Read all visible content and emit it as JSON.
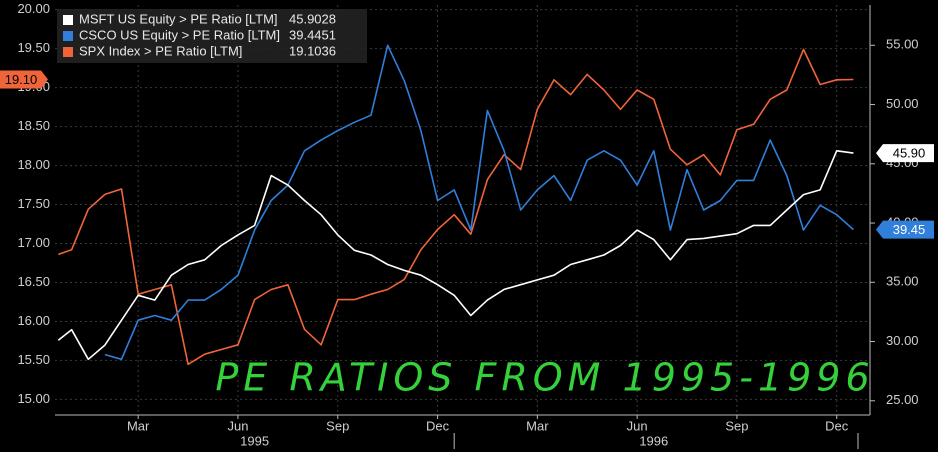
{
  "chart_data": {
    "type": "line",
    "annotation": "PE RATIOS FROM 1995-1996",
    "x": [
      -0.4,
      0,
      0.5,
      1,
      1.5,
      2,
      2.5,
      3,
      3.5,
      4,
      4.5,
      5,
      5.5,
      6,
      6.5,
      7,
      7.5,
      8,
      8.5,
      9,
      9.5,
      10,
      10.5,
      11,
      11.5,
      12,
      12.5,
      13,
      13.5,
      14,
      14.5,
      15,
      15.5,
      16,
      16.5,
      17,
      17.5,
      18,
      18.5,
      19,
      19.5,
      20,
      20.5,
      21,
      21.5,
      22,
      22.5,
      23,
      23.5
    ],
    "xlim": [
      -0.5,
      24
    ],
    "xticks": [
      {
        "value": 2,
        "label": "Mar"
      },
      {
        "value": 5,
        "label": "Jun"
      },
      {
        "value": 8,
        "label": "Sep"
      },
      {
        "value": 11,
        "label": "Dec"
      },
      {
        "value": 14,
        "label": "Mar"
      },
      {
        "value": 17,
        "label": "Jun"
      },
      {
        "value": 20,
        "label": "Sep"
      },
      {
        "value": 23,
        "label": "Dec"
      }
    ],
    "xgroups": [
      "1995",
      "1996"
    ],
    "ylim": [
      14.8,
      20.06
    ],
    "yticks": [
      {
        "value": 15,
        "label": "15.00"
      },
      {
        "value": 15.5,
        "label": "15.50"
      },
      {
        "value": 16,
        "label": "16.00"
      },
      {
        "value": 16.5,
        "label": "16.50"
      },
      {
        "value": 17,
        "label": "17.00"
      },
      {
        "value": 17.5,
        "label": "17.50"
      },
      {
        "value": 18,
        "label": "18.00"
      },
      {
        "value": 18.5,
        "label": "18.50"
      },
      {
        "value": 19,
        "label": "19.00"
      },
      {
        "value": 19.5,
        "label": "19.50"
      },
      {
        "value": 20,
        "label": "20.00"
      }
    ],
    "y2lim": [
      23.8,
      58.4
    ],
    "y2ticks": [
      {
        "value": 25,
        "label": "25.00"
      },
      {
        "value": 30,
        "label": "30.00"
      },
      {
        "value": 35,
        "label": "35.00"
      },
      {
        "value": 40,
        "label": "40.00"
      },
      {
        "value": 45,
        "label": "45.00"
      },
      {
        "value": 50,
        "label": "50.00"
      },
      {
        "value": 55,
        "label": "55.00"
      }
    ],
    "grid": true,
    "legend": "top-left",
    "series": [
      {
        "name": "MSFT US Equity > PE Ratio [LTM]",
        "color": "#ffffff",
        "axis": "y2",
        "last_label": "45.90",
        "values": [
          30.1,
          31.0,
          28.5,
          29.7,
          31.8,
          33.9,
          33.5,
          35.6,
          36.5,
          36.9,
          38.1,
          39.0,
          39.8,
          44.0,
          43.2,
          41.9,
          40.7,
          39.0,
          37.7,
          37.3,
          36.5,
          36.0,
          35.6,
          34.8,
          33.9,
          32.2,
          33.5,
          34.4,
          34.8,
          35.2,
          35.6,
          36.5,
          36.9,
          37.3,
          38.1,
          39.4,
          38.6,
          36.9,
          38.6,
          38.7,
          38.9,
          39.1,
          39.8,
          39.8,
          41.1,
          42.4,
          42.8,
          46.1,
          45.9028
        ]
      },
      {
        "name": "CSCO US Equity > PE Ratio [LTM]",
        "color": "#2f7fdb",
        "axis": "y2",
        "last_label": "39.45",
        "values": [
          null,
          null,
          null,
          28.9,
          28.5,
          31.8,
          32.2,
          31.8,
          33.5,
          33.5,
          34.4,
          35.6,
          39.4,
          41.9,
          43.2,
          46.1,
          47.0,
          47.8,
          48.5,
          49.1,
          55.0,
          52.0,
          47.8,
          41.9,
          42.8,
          39.4,
          49.5,
          46.1,
          41.1,
          42.8,
          44.0,
          41.9,
          45.3,
          46.1,
          45.3,
          43.2,
          46.1,
          39.4,
          44.5,
          41.1,
          41.9,
          43.6,
          43.6,
          47.0,
          44.0,
          39.4,
          41.5,
          40.7,
          39.4451
        ]
      },
      {
        "name": "SPX Index > PE Ratio [LTM]",
        "color": "#f0643a",
        "axis": "y",
        "last_label": "19.10",
        "values": [
          16.86,
          16.92,
          17.44,
          17.63,
          17.7,
          16.35,
          16.41,
          16.47,
          15.45,
          15.58,
          15.64,
          15.7,
          16.28,
          16.41,
          16.47,
          15.9,
          15.7,
          16.28,
          16.28,
          16.35,
          16.41,
          16.54,
          16.92,
          17.18,
          17.37,
          17.12,
          17.82,
          18.14,
          17.95,
          18.72,
          19.1,
          18.91,
          19.17,
          18.97,
          18.72,
          18.97,
          18.85,
          18.21,
          18.01,
          18.14,
          17.88,
          18.46,
          18.53,
          18.85,
          18.97,
          19.49,
          19.04,
          19.1,
          19.1036
        ]
      }
    ]
  }
}
